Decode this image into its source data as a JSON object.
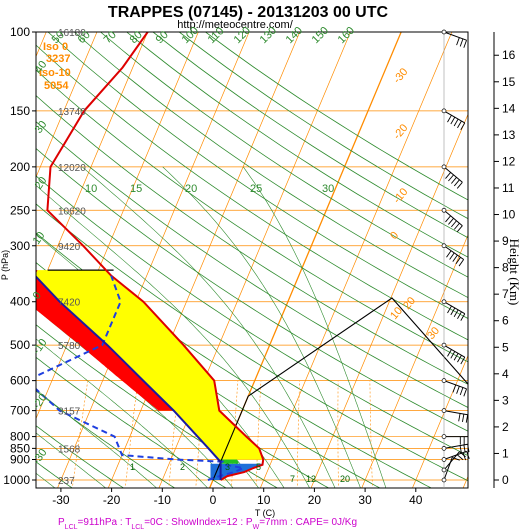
{
  "chart_data": {
    "type": "line",
    "chart_kind": "skew-T log-P",
    "title": "TRAPPES (07145) - 20131203 00 UTC",
    "subtitle": "http://meteocentre.com/",
    "ylabel": "P (hPa)",
    "xlabel": "T (C)",
    "right_axis_label": "Height (Km)",
    "pressure_ticks": [
      100,
      150,
      200,
      250,
      300,
      400,
      500,
      600,
      700,
      800,
      850,
      900,
      1000
    ],
    "temperature_ticks": [
      -30,
      -20,
      -10,
      0,
      10,
      20,
      30,
      40
    ],
    "height_ticks_km": [
      0,
      1,
      2,
      3,
      4,
      5,
      6,
      7,
      8,
      9,
      10,
      11,
      12,
      13,
      14,
      15,
      16
    ],
    "ylim_hpa": [
      1050,
      100
    ],
    "xlim_c_at_1000hpa": [
      -35,
      50
    ],
    "legend_box": [
      "Iso 0",
      "3237",
      "Iso-10",
      "5054"
    ],
    "standard_heights": [
      {
        "p": 100,
        "label": "16180"
      },
      {
        "p": 150,
        "label": "13740"
      },
      {
        "p": 200,
        "label": "12020"
      },
      {
        "p": 250,
        "label": "10620"
      },
      {
        "p": 300,
        "label": "9420"
      },
      {
        "p": 400,
        "label": "7420"
      },
      {
        "p": 500,
        "label": "5780"
      },
      {
        "p": 700,
        "label": "3157"
      },
      {
        "p": 850,
        "label": "1568"
      },
      {
        "p": 1000,
        "label": "237"
      }
    ],
    "dry_adiabat_labels": [
      "50",
      "60",
      "70",
      "80",
      "90",
      "100",
      "110",
      "120",
      "130",
      "140",
      "150",
      "160",
      "40",
      "30",
      "20",
      "10",
      "0",
      "-10",
      "-20",
      "-30"
    ],
    "moist_adiabat_labels": [
      "10",
      "15",
      "20",
      "25",
      "30"
    ],
    "isotherm_labels": [
      "-30",
      "-20",
      "-10",
      "0",
      "10",
      "20",
      "30"
    ],
    "mixing_ratio_labels": [
      "1",
      "2",
      "3",
      "5",
      "7",
      "12",
      "20",
      "30"
    ],
    "series": [
      {
        "name": "temperature",
        "color": "#dd0000",
        "points": [
          {
            "p": 1000,
            "t": 1.5
          },
          {
            "p": 980,
            "t": 2.5
          },
          {
            "p": 960,
            "t": 5.5
          },
          {
            "p": 940,
            "t": 7.0
          },
          {
            "p": 925,
            "t": 8.5
          },
          {
            "p": 900,
            "t": 8.2
          },
          {
            "p": 850,
            "t": 6.5
          },
          {
            "p": 800,
            "t": 3.0
          },
          {
            "p": 700,
            "t": -4.5
          },
          {
            "p": 600,
            "t": -8.0
          },
          {
            "p": 500,
            "t": -17.0
          },
          {
            "p": 400,
            "t": -28.5
          },
          {
            "p": 350,
            "t": -37.0
          },
          {
            "p": 300,
            "t": -45.0
          },
          {
            "p": 250,
            "t": -55.0
          },
          {
            "p": 200,
            "t": -58.0
          },
          {
            "p": 150,
            "t": -56.0
          },
          {
            "p": 120,
            "t": -52.0
          },
          {
            "p": 100,
            "t": -50.0
          }
        ]
      },
      {
        "name": "dewpoint",
        "color": "#1f3fdf",
        "points": [
          {
            "p": 1000,
            "t": -1.0
          },
          {
            "p": 980,
            "t": 1.0
          },
          {
            "p": 960,
            "t": 3.5
          },
          {
            "p": 940,
            "t": 5.0
          },
          {
            "p": 925,
            "t": 1.0
          },
          {
            "p": 910,
            "t": 0.5
          },
          {
            "p": 900,
            "t": -9.0
          },
          {
            "p": 880,
            "t": -20.0
          },
          {
            "p": 800,
            "t": -23.0
          },
          {
            "p": 700,
            "t": -36.0
          },
          {
            "p": 600,
            "t": -45.0
          },
          {
            "p": 500,
            "t": -33.0
          },
          {
            "p": 400,
            "t": -33.0
          },
          {
            "p": 350,
            "t": -37.0
          }
        ]
      },
      {
        "name": "parcel",
        "color": "#1a1aa0",
        "points": [
          {
            "p": 1000,
            "t": 1.5
          },
          {
            "p": 911,
            "t": 0.0
          },
          {
            "p": 850,
            "t": -3.5
          },
          {
            "p": 700,
            "t": -13.5
          },
          {
            "p": 600,
            "t": -22.0
          },
          {
            "p": 500,
            "t": -32.0
          },
          {
            "p": 400,
            "t": -45.0
          },
          {
            "p": 350,
            "t": -52.0
          }
        ]
      }
    ],
    "isotherm_0_color": "#000000",
    "shading": {
      "cin": "#ff0000",
      "dry": "#ffff00",
      "wet": "#22c022",
      "low": "#1e6fd9"
    },
    "footer": "P LCL=911hPa : T LCL=0C : ShowIndex=12 : P W=7mm : CAPE= 0J/Kg",
    "footer_parts": {
      "plcl": "P",
      "plcl_sub": "LCL",
      "plcl_val": "=911hPa : T",
      "tlcl_sub": "LCL",
      "tlcl_val": "=0C : ShowIndex=12 : P",
      "pw_sub": "W",
      "pw_val": "=7mm : CAPE= 0J/Kg"
    },
    "wind_profile": [
      {
        "p": 1000,
        "dir": 200,
        "spd": 10
      },
      {
        "p": 950,
        "dir": 220,
        "spd": 15
      },
      {
        "p": 900,
        "dir": 250,
        "spd": 20
      },
      {
        "p": 850,
        "dir": 260,
        "spd": 25
      },
      {
        "p": 800,
        "dir": 270,
        "spd": 25
      },
      {
        "p": 700,
        "dir": 280,
        "spd": 30
      },
      {
        "p": 600,
        "dir": 290,
        "spd": 40
      },
      {
        "p": 500,
        "dir": 300,
        "spd": 50
      },
      {
        "p": 400,
        "dir": 300,
        "spd": 60
      },
      {
        "p": 300,
        "dir": 305,
        "spd": 70
      },
      {
        "p": 250,
        "dir": 310,
        "spd": 80
      },
      {
        "p": 200,
        "dir": 310,
        "spd": 70
      },
      {
        "p": 150,
        "dir": 300,
        "spd": 50
      },
      {
        "p": 100,
        "dir": 290,
        "spd": 30
      }
    ]
  }
}
